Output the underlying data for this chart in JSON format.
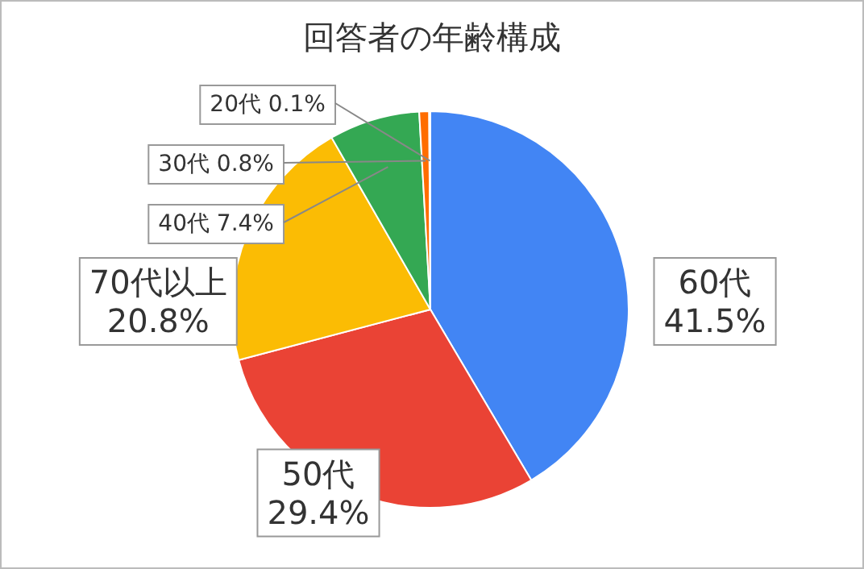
{
  "chart_data": {
    "type": "pie",
    "title": "回答者の年齢構成",
    "categories": [
      "60代",
      "50代",
      "70代以上",
      "40代",
      "30代",
      "20代"
    ],
    "values": [
      41.5,
      29.4,
      20.8,
      7.4,
      0.8,
      0.1
    ],
    "value_labels": [
      "41.5%",
      "29.4%",
      "20.8%",
      "7.4%",
      "0.8%",
      "0.1%"
    ],
    "colors": [
      "#4285f4",
      "#ea4335",
      "#fbbc04",
      "#34a853",
      "#ff6d01",
      "#46bdc6"
    ]
  }
}
